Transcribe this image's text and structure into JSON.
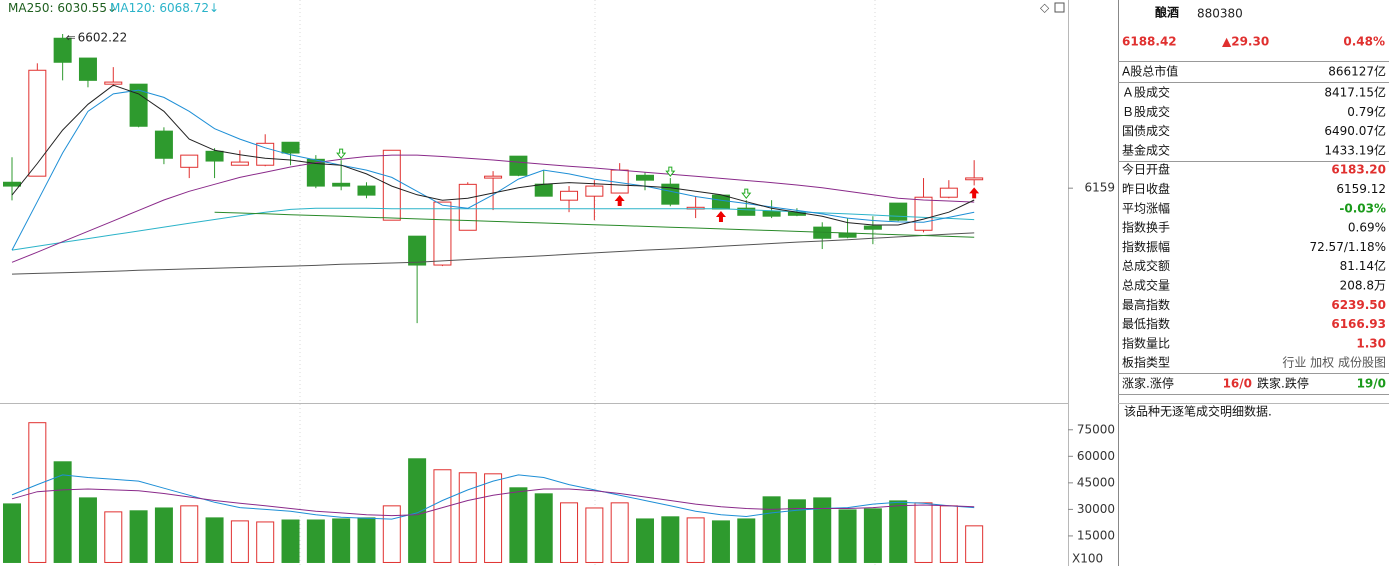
{
  "chart_data": [
    {
      "type": "candlestick",
      "up_color": "#e0302f",
      "down_color": "#2e9a2e",
      "open": [
        6176,
        6193.5,
        6590,
        6533,
        6458,
        6458,
        6323,
        6219,
        6265,
        6225,
        6225,
        6291,
        6242,
        6173,
        6165,
        6067,
        6021,
        5938,
        6038,
        6188,
        6251,
        6170.5,
        6124.5,
        6136,
        6145,
        6196,
        6170.5,
        6099,
        6139,
        6101.5,
        6093,
        6090,
        6047,
        6029.6,
        6050,
        6116,
        6038,
        6133,
        6183.2
      ],
      "high": [
        6248,
        6518,
        6602.22,
        6533,
        6507,
        6458,
        6334,
        6254,
        6274,
        6268,
        6314,
        6291,
        6254,
        6239.5,
        6176,
        6268,
        6021,
        6119,
        6176,
        6208,
        6251,
        6211,
        6165,
        6182,
        6231,
        6205,
        6188,
        6136,
        6139,
        6124.5,
        6124.5,
        6101.5,
        6061,
        6073,
        6078.5,
        6116,
        6188,
        6182,
        6239.5
      ],
      "low": [
        6124,
        6193,
        6469,
        6449,
        6452,
        6334,
        6228,
        6188,
        6188,
        6225,
        6222,
        6225,
        6159,
        6153,
        6130,
        6067,
        5771,
        5935,
        6038,
        6096,
        6193.5,
        6136,
        6090,
        6067,
        6145,
        6153,
        6107,
        6073,
        6099,
        6081,
        6073,
        6078.5,
        5984,
        6015,
        5998,
        6064,
        6032,
        6130,
        6166.93
      ],
      "close": [
        6165,
        6498,
        6521,
        6469,
        6464,
        6337,
        6245,
        6254,
        6237,
        6234,
        6288,
        6260,
        6165,
        6165,
        6139,
        6268,
        5938,
        6119,
        6170,
        6193.5,
        6196,
        6136,
        6150,
        6165,
        6211,
        6182,
        6113,
        6104,
        6099,
        6081,
        6078.5,
        6081,
        6015,
        6018,
        6041,
        6067,
        6133,
        6159,
        6188.42
      ],
      "series": [
        {
          "name": "MA250",
          "color": "#555555",
          "legend_color": "#1f5f1f",
          "trend": "↓",
          "values": [
            5912,
            5914,
            5916,
            5918,
            5920,
            5923,
            5925,
            5927,
            5929,
            5931,
            5933,
            5935,
            5937,
            5940,
            5942,
            5944,
            5946,
            5950,
            5954,
            5958,
            5961,
            5965,
            5969,
            5973,
            5977,
            5981,
            5984,
            5988,
            5992,
            5996,
            6000,
            6004,
            6007,
            6011,
            6015,
            6019,
            6023,
            6027,
            6030.55
          ]
        },
        {
          "name": "MA120",
          "color": "#2bb3c9",
          "legend_color": "#2bb3c9",
          "trend": "↓",
          "values": [
            5981,
            5992,
            6003,
            6014,
            6025,
            6036,
            6047,
            6058,
            6069,
            6080,
            6090,
            6098,
            6101,
            6101,
            6101,
            6100,
            6100,
            6100,
            6100,
            6100,
            6100,
            6100,
            6100,
            6100,
            6100,
            6100,
            6100,
            6100,
            6100,
            6097,
            6094,
            6091,
            6088,
            6085,
            6082,
            6078,
            6075,
            6072,
            6068.72
          ]
        },
        {
          "color": "#2a8a2a",
          "values": [
            null,
            null,
            null,
            null,
            null,
            null,
            null,
            null,
            6090,
            6087.6,
            6085.2,
            6082.8,
            6080.4,
            6078,
            6075.6,
            6073.2,
            6070.8,
            6068.4,
            6066,
            6063.6,
            6061.2,
            6058.8,
            6056.4,
            6054,
            6051.6,
            6049.2,
            6046.8,
            6044.4,
            6042,
            6039.6,
            6037.2,
            6034.8,
            6032.4,
            6030,
            6027.6,
            6025.2,
            6022.8,
            6020.4,
            6018
          ]
        },
        {
          "color": "#8a2a8a",
          "values": [
            5946,
            5975,
            6005,
            6035,
            6065,
            6095,
            6125,
            6150,
            6170,
            6190,
            6205,
            6220,
            6232,
            6242,
            6250,
            6254,
            6254,
            6250,
            6245,
            6240,
            6234,
            6228,
            6222,
            6217,
            6211,
            6205,
            6199,
            6193,
            6187,
            6181,
            6175,
            6168,
            6160,
            6150,
            6140,
            6130,
            6125,
            6122,
            6119
          ]
        },
        {
          "color": "#1e8fd6",
          "values": [
            5981,
            6120,
            6260,
            6380,
            6430,
            6441,
            6420,
            6380,
            6330,
            6300,
            6275,
            6255,
            6240,
            6225,
            6211,
            6190,
            6150,
            6110,
            6101,
            6140,
            6185,
            6211,
            6200,
            6185,
            6175,
            6165,
            6150,
            6135,
            6124,
            6115,
            6105,
            6095,
            6085,
            6073,
            6066,
            6062,
            6061,
            6075,
            6090
          ]
        },
        {
          "color": "#222222",
          "values": [
            6139,
            6230,
            6326,
            6400,
            6455,
            6430,
            6380,
            6300,
            6268,
            6255,
            6245,
            6240,
            6230,
            6225,
            6200,
            6165,
            6140,
            6124,
            6130,
            6145,
            6160,
            6170,
            6175,
            6172,
            6168,
            6165,
            6160,
            6150,
            6140,
            6120,
            6101,
            6090,
            6078,
            6060,
            6053,
            6053,
            6070,
            6090,
            6125
          ]
        }
      ],
      "ylim": [
        5550,
        6700
      ],
      "yticks": [
        6159
      ]
    },
    {
      "type": "bar",
      "values": [
        33100,
        79000,
        56900,
        36500,
        28600,
        29200,
        30800,
        32000,
        25200,
        23500,
        22900,
        24000,
        24000,
        24600,
        25200,
        32000,
        58600,
        52400,
        50700,
        50100,
        42200,
        38800,
        33700,
        30800,
        33700,
        24600,
        25800,
        25200,
        23500,
        24600,
        37100,
        35400,
        36500,
        29700,
        30300,
        34800,
        33700,
        32000,
        20700
      ],
      "series": [
        {
          "color": "#1e8fd6",
          "values": [
            38200,
            44000,
            49500,
            48000,
            47000,
            46000,
            42000,
            38000,
            34000,
            31000,
            30000,
            29000,
            27000,
            25500,
            25000,
            24500,
            28000,
            35000,
            41000,
            46000,
            49500,
            48000,
            44000,
            41000,
            38000,
            35000,
            32000,
            29000,
            27000,
            26000,
            28000,
            29500,
            30500,
            31000,
            33000,
            34000,
            33500,
            32000,
            31000
          ]
        },
        {
          "color": "#8a2a8a",
          "values": [
            36000,
            40000,
            41000,
            41500,
            41000,
            40500,
            39000,
            37000,
            35000,
            33500,
            32000,
            30500,
            29000,
            28000,
            27000,
            26500,
            27000,
            31000,
            35000,
            38000,
            40000,
            41500,
            41500,
            40500,
            39000,
            37000,
            35000,
            33000,
            31500,
            30500,
            30000,
            30500,
            30500,
            30500,
            31000,
            32000,
            32500,
            32000,
            31500
          ]
        }
      ],
      "ylim": [
        -2000,
        89000
      ],
      "yticks": [
        15000,
        30000,
        45000,
        60000,
        75000
      ],
      "y_unit_label": "X100"
    }
  ],
  "quote_panel": {
    "name": "酿酒",
    "code": "880380",
    "price": "6188.42",
    "change": "▲29.30",
    "change_pct": "0.48%",
    "rows": [
      {
        "label": "A股总市值",
        "value": "866127亿"
      },
      {
        "label": "Ａ股成交",
        "value": "8417.15亿"
      },
      {
        "label": "Ｂ股成交",
        "value": "0.79亿"
      },
      {
        "label": "国债成交",
        "value": "6490.07亿"
      },
      {
        "label": "基金成交",
        "value": "1433.19亿"
      },
      {
        "label": "今日开盘",
        "value": "6183.20",
        "color": "#e0302f"
      },
      {
        "label": "昨日收盘",
        "value": "6159.12"
      },
      {
        "label": "平均涨幅",
        "value": "-0.03%",
        "color": "#1a9a1a"
      },
      {
        "label": "指数换手",
        "value": "0.69%"
      },
      {
        "label": "指数振幅",
        "value": "72.57/1.18%"
      },
      {
        "label": "总成交额",
        "value": "81.14亿"
      },
      {
        "label": "总成交量",
        "value": "208.8万"
      },
      {
        "label": "最高指数",
        "value": "6239.50",
        "color": "#e0302f"
      },
      {
        "label": "最低指数",
        "value": "6166.93",
        "color": "#e0302f"
      },
      {
        "label": "指数量比",
        "value": "1.30",
        "color": "#e0302f"
      },
      {
        "label": "板指类型",
        "value": "行业 加权 成份股图",
        "color": "#555555"
      }
    ],
    "breadth": {
      "up_label": "涨家.涨停",
      "up_value": "16/0",
      "down_label": "跌家.跌停",
      "down_value": "19/0"
    },
    "notice": "该品种无逐笔成交明细数据."
  }
}
